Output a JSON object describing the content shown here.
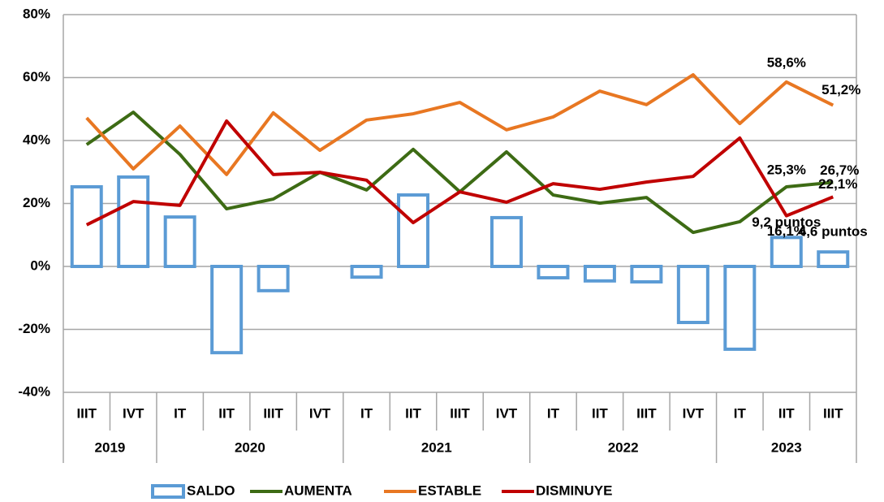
{
  "chart_data": {
    "type": "bar-line",
    "categories": [
      "IIIT",
      "IVT",
      "IT",
      "IIT",
      "IIIT",
      "IVT",
      "IT",
      "IIT",
      "IIIT",
      "IVT",
      "IT",
      "IIT",
      "IIIT",
      "IVT",
      "IT",
      "IIT",
      "IIIT"
    ],
    "category_groups": [
      "2019",
      null,
      "2020",
      null,
      null,
      null,
      "2021",
      null,
      null,
      null,
      "2022",
      null,
      null,
      null,
      "2023",
      null,
      null
    ],
    "ylim": [
      -40,
      80
    ],
    "yticks": [
      {
        "value": -40,
        "label": "-40%"
      },
      {
        "value": -20,
        "label": "-20%"
      },
      {
        "value": 0,
        "label": "0%"
      },
      {
        "value": 20,
        "label": "20%"
      },
      {
        "value": 40,
        "label": "40%"
      },
      {
        "value": 60,
        "label": "60%"
      },
      {
        "value": 80,
        "label": "80%"
      }
    ],
    "grid": true,
    "legend": "bottom",
    "series": [
      {
        "name": "SALDO",
        "type": "bar",
        "color": "#5b9bd5",
        "label_color": "#5b8fd0",
        "values": [
          25.3,
          28.4,
          15.7,
          -27.4,
          -7.7,
          0,
          -3.4,
          22.7,
          0,
          15.5,
          -3.6,
          -4.6,
          -4.9,
          -17.8,
          -26.3,
          9.2,
          4.6
        ],
        "value_labels": [
          null,
          null,
          null,
          null,
          null,
          null,
          null,
          null,
          null,
          null,
          null,
          null,
          null,
          null,
          null,
          "9,2 puntos",
          "4,6 puntos"
        ]
      },
      {
        "name": "AUMENTA",
        "type": "line",
        "color": "#3d6b14",
        "label_color": "#3d6b14",
        "values": [
          38.7,
          49,
          35.6,
          18.3,
          21.4,
          29.9,
          24.3,
          37.2,
          23.7,
          36.4,
          22.7,
          20.1,
          21.9,
          10.8,
          14.2,
          25.3,
          26.7
        ],
        "value_labels": [
          null,
          null,
          null,
          null,
          null,
          null,
          null,
          null,
          null,
          null,
          null,
          null,
          null,
          null,
          null,
          "25,3%",
          "26,7%"
        ]
      },
      {
        "name": "ESTABLE",
        "type": "line",
        "color": "#e87722",
        "label_color": "#e87722",
        "values": [
          47.2,
          31,
          44.6,
          29.2,
          48.8,
          36.9,
          46.5,
          48.5,
          52.1,
          43.4,
          47.5,
          55.7,
          51.4,
          60.9,
          45.4,
          58.6,
          51.2
        ],
        "value_labels": [
          null,
          null,
          null,
          null,
          null,
          null,
          null,
          null,
          null,
          null,
          null,
          null,
          null,
          null,
          null,
          "58,6%",
          "51,2%"
        ]
      },
      {
        "name": "DISMINUYE",
        "type": "line",
        "color": "#c00000",
        "label_color": "#c00000",
        "values": [
          13.2,
          20.6,
          19.4,
          46.2,
          29.2,
          29.9,
          27.4,
          13.9,
          23.7,
          20.4,
          26.3,
          24.5,
          26.8,
          28.6,
          40.8,
          16.1,
          22.1
        ],
        "value_labels": [
          null,
          null,
          null,
          null,
          null,
          null,
          null,
          null,
          null,
          null,
          null,
          null,
          null,
          null,
          null,
          "16,1%",
          "22,1%"
        ]
      }
    ]
  }
}
